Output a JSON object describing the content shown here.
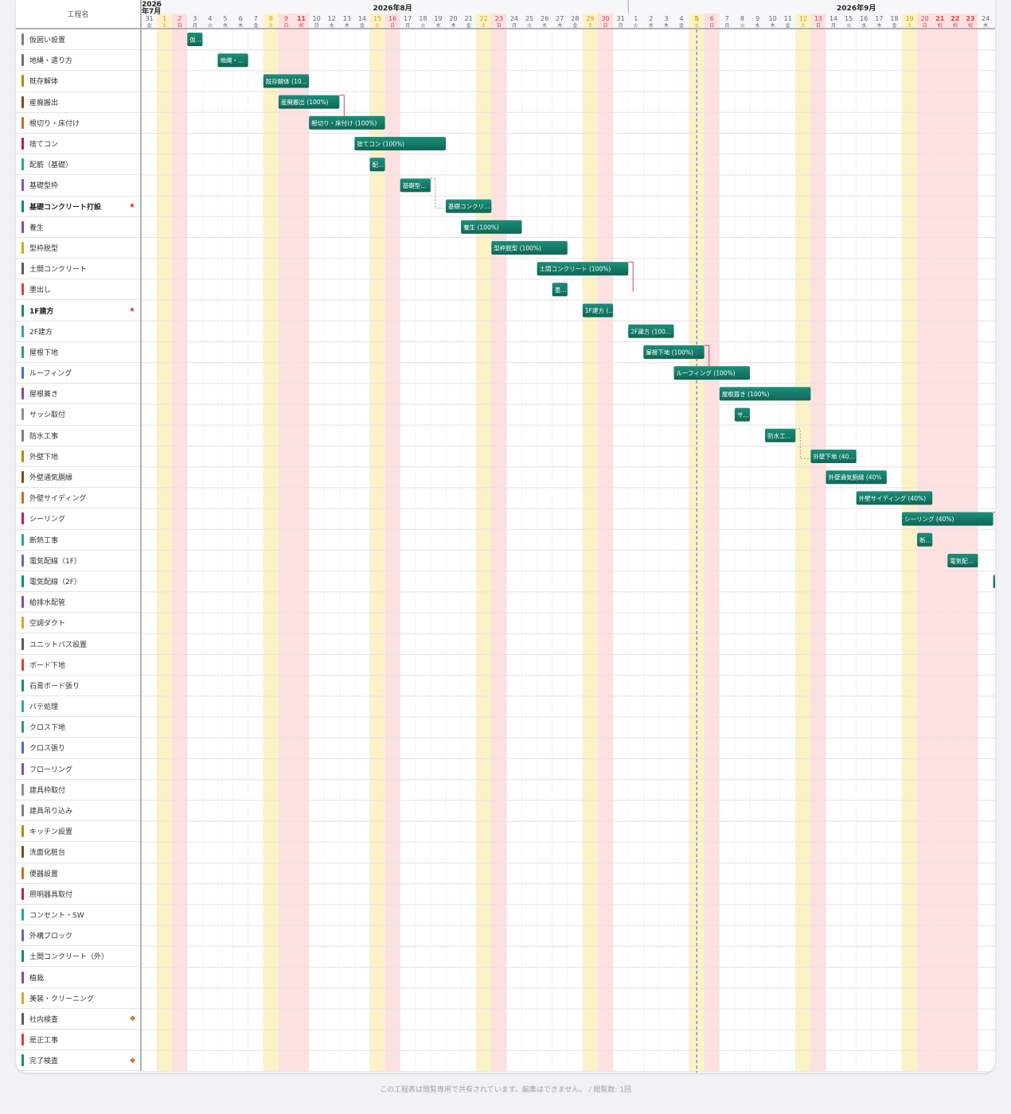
{
  "header": {
    "name_col": "工程名",
    "months": [
      {
        "label": "2026年7月",
        "stacked": true
      },
      {
        "label": "2026年8月"
      },
      {
        "label": "2026年9月"
      }
    ],
    "today_index": 36
  },
  "colors": {
    "bar": "#126f5f",
    "bar_light": "#1b8f7a",
    "saturday_bg": "#fdf2c6",
    "holiday_bg": "#fde0e0",
    "today_line": "#3f62d8",
    "dependency": "#d94452"
  },
  "days": [
    {
      "d": "31",
      "w": "金",
      "t": "n"
    },
    {
      "d": "1",
      "w": "土",
      "t": "s"
    },
    {
      "d": "2",
      "w": "日",
      "t": "h"
    },
    {
      "d": "3",
      "w": "月",
      "t": "n"
    },
    {
      "d": "4",
      "w": "火",
      "t": "n"
    },
    {
      "d": "5",
      "w": "水",
      "t": "n"
    },
    {
      "d": "6",
      "w": "木",
      "t": "n"
    },
    {
      "d": "7",
      "w": "金",
      "t": "n"
    },
    {
      "d": "8",
      "w": "土",
      "t": "s"
    },
    {
      "d": "9",
      "w": "日",
      "t": "h"
    },
    {
      "d": "11",
      "w": "祝",
      "t": "hb"
    },
    {
      "d": "10",
      "w": "月",
      "t": "n"
    },
    {
      "d": "12",
      "w": "水",
      "t": "n"
    },
    {
      "d": "13",
      "w": "木",
      "t": "n"
    },
    {
      "d": "14",
      "w": "金",
      "t": "n"
    },
    {
      "d": "15",
      "w": "土",
      "t": "s"
    },
    {
      "d": "16",
      "w": "日",
      "t": "h"
    },
    {
      "d": "17",
      "w": "月",
      "t": "n"
    },
    {
      "d": "18",
      "w": "火",
      "t": "n"
    },
    {
      "d": "19",
      "w": "水",
      "t": "n"
    },
    {
      "d": "20",
      "w": "木",
      "t": "n"
    },
    {
      "d": "21",
      "w": "金",
      "t": "n"
    },
    {
      "d": "22",
      "w": "土",
      "t": "s"
    },
    {
      "d": "23",
      "w": "日",
      "t": "h"
    },
    {
      "d": "24",
      "w": "月",
      "t": "n"
    },
    {
      "d": "25",
      "w": "火",
      "t": "n"
    },
    {
      "d": "26",
      "w": "水",
      "t": "n"
    },
    {
      "d": "27",
      "w": "木",
      "t": "n"
    },
    {
      "d": "28",
      "w": "金",
      "t": "n"
    },
    {
      "d": "29",
      "w": "土",
      "t": "s"
    },
    {
      "d": "30",
      "w": "日",
      "t": "h"
    },
    {
      "d": "31",
      "w": "月",
      "t": "n"
    },
    {
      "d": "1",
      "w": "火",
      "t": "n"
    },
    {
      "d": "2",
      "w": "水",
      "t": "n"
    },
    {
      "d": "3",
      "w": "木",
      "t": "n"
    },
    {
      "d": "4",
      "w": "金",
      "t": "n"
    },
    {
      "d": "5",
      "w": "土",
      "t": "s"
    },
    {
      "d": "6",
      "w": "日",
      "t": "h"
    },
    {
      "d": "7",
      "w": "月",
      "t": "n"
    },
    {
      "d": "8",
      "w": "火",
      "t": "n"
    },
    {
      "d": "9",
      "w": "水",
      "t": "n"
    },
    {
      "d": "10",
      "w": "木",
      "t": "n"
    },
    {
      "d": "11",
      "w": "金",
      "t": "n"
    },
    {
      "d": "12",
      "w": "土",
      "t": "s"
    },
    {
      "d": "13",
      "w": "日",
      "t": "h"
    },
    {
      "d": "14",
      "w": "月",
      "t": "n"
    },
    {
      "d": "15",
      "w": "火",
      "t": "n"
    },
    {
      "d": "16",
      "w": "水",
      "t": "n"
    },
    {
      "d": "17",
      "w": "木",
      "t": "n"
    },
    {
      "d": "18",
      "w": "金",
      "t": "n"
    },
    {
      "d": "19",
      "w": "土",
      "t": "s"
    },
    {
      "d": "20",
      "w": "日",
      "t": "h"
    },
    {
      "d": "21",
      "w": "祝",
      "t": "hb"
    },
    {
      "d": "22",
      "w": "祝",
      "t": "hb"
    },
    {
      "d": "23",
      "w": "祝",
      "t": "hb"
    },
    {
      "d": "24",
      "w": "木",
      "t": "n"
    }
  ],
  "tasks": [
    {
      "name": "仮囲い設置",
      "color": "#7a7f87",
      "bar": {
        "start": 3,
        "dur": 1,
        "label": "仮..."
      }
    },
    {
      "name": "地縄・遣り方",
      "color": "#6b6f76",
      "bar": {
        "start": 5,
        "dur": 2,
        "label": "地縄・..."
      }
    },
    {
      "name": "既存解体",
      "color": "#b8860b",
      "bar": {
        "start": 8,
        "dur": 3,
        "label": "既存解体 (10..."
      }
    },
    {
      "name": "産廃搬出",
      "color": "#8b4513",
      "bar": {
        "start": 9,
        "dur": 4,
        "label": "産廃搬出 (100%)"
      }
    },
    {
      "name": "根切り・床付け",
      "color": "#d2691e",
      "bar": {
        "start": 11,
        "dur": 5,
        "label": "根切り・床付け (100%)"
      }
    },
    {
      "name": "捨てコン",
      "color": "#c2185b",
      "bar": {
        "start": 14,
        "dur": 6,
        "label": "捨てコン (100%)"
      }
    },
    {
      "name": "配筋（基礎）",
      "color": "#26a69a",
      "bar": {
        "start": 15,
        "dur": 1,
        "label": "配..."
      }
    },
    {
      "name": "基礎型枠",
      "color": "#7e57c2",
      "bar": {
        "start": 17,
        "dur": 2,
        "label": "基礎型..."
      }
    },
    {
      "name": "基礎コンクリート打設",
      "color": "#00897b",
      "bold": true,
      "mark": "★",
      "mark_color": "#e53935",
      "bar": {
        "start": 20,
        "dur": 3,
        "label": "基礎コンクリ..."
      }
    },
    {
      "name": "養生",
      "color": "#8e44ad",
      "bar": {
        "start": 21,
        "dur": 4,
        "label": "養生 (100%)"
      }
    },
    {
      "name": "型枠脱型",
      "color": "#daa520",
      "bar": {
        "start": 23,
        "dur": 5,
        "label": "型枠脱型 (100%)"
      }
    },
    {
      "name": "土間コンクリート",
      "color": "#555b63",
      "bar": {
        "start": 26,
        "dur": 6,
        "label": "土間コンクリート (100%)"
      }
    },
    {
      "name": "墨出し",
      "color": "#e53935",
      "bar": {
        "start": 27,
        "dur": 1,
        "label": "墨..."
      }
    },
    {
      "name": "1F建方",
      "color": "#1b8a6b",
      "bold": true,
      "mark": "★",
      "mark_color": "#e53935",
      "bar": {
        "start": 29,
        "dur": 2,
        "label": "1F建方 (..."
      }
    },
    {
      "name": "2F建方",
      "color": "#2aa7b5",
      "bar": {
        "start": 32,
        "dur": 3,
        "label": "2F建方 (100..."
      }
    },
    {
      "name": "屋根下地",
      "color": "#2e9d6a",
      "bar": {
        "start": 33,
        "dur": 4,
        "label": "屋根下地 (100%)"
      }
    },
    {
      "name": "ルーフィング",
      "color": "#3b6fd8",
      "bar": {
        "start": 35,
        "dur": 5,
        "label": "ルーフィング (100%)"
      }
    },
    {
      "name": "屋根葺き",
      "color": "#8e44ad",
      "bar": {
        "start": 38,
        "dur": 6,
        "label": "屋根葺き (100%)"
      }
    },
    {
      "name": "サッシ取付",
      "color": "#8a8f98",
      "bar": {
        "start": 39,
        "dur": 1,
        "label": "サ..."
      }
    },
    {
      "name": "防水工事",
      "color": "#7a7f87",
      "bar": {
        "start": 41,
        "dur": 2,
        "label": "防水工..."
      }
    },
    {
      "name": "外壁下地",
      "color": "#b8860b",
      "bar": {
        "start": 44,
        "dur": 3,
        "label": "外壁下地 (40..."
      }
    },
    {
      "name": "外壁通気胴縁",
      "color": "#8b4513",
      "bar": {
        "start": 45,
        "dur": 4,
        "label": "外壁通気胴縁 (40%"
      }
    },
    {
      "name": "外壁サイディング",
      "color": "#d2691e",
      "bar": {
        "start": 47,
        "dur": 5,
        "label": "外壁サイディング (40%)"
      }
    },
    {
      "name": "シーリング",
      "color": "#c2185b",
      "bar": {
        "start": 50,
        "dur": 6,
        "label": "シーリング (40%)"
      }
    },
    {
      "name": "断熱工事",
      "color": "#26a69a",
      "bar": {
        "start": 51,
        "dur": 1,
        "label": "断..."
      }
    },
    {
      "name": "電気配線（1F）",
      "color": "#5c6bc0",
      "bar": {
        "start": 53,
        "dur": 2,
        "label": "電気配..."
      }
    },
    {
      "name": "電気配線（2F）",
      "color": "#00897b",
      "bar": {
        "start": 56,
        "dur": 1,
        "label": ""
      }
    },
    {
      "name": "給排水配管",
      "color": "#8e44ad",
      "bar": null
    },
    {
      "name": "空調ダクト",
      "color": "#daa520",
      "bar": null
    },
    {
      "name": "ユニットバス設置",
      "color": "#555b63",
      "bar": null
    },
    {
      "name": "ボード下地",
      "color": "#e53935",
      "bar": null
    },
    {
      "name": "石膏ボード張り",
      "color": "#1b8a6b",
      "bar": null
    },
    {
      "name": "パテ処理",
      "color": "#2aa7b5",
      "bar": null
    },
    {
      "name": "クロス下地",
      "color": "#2e9d6a",
      "bar": null
    },
    {
      "name": "クロス張り",
      "color": "#3b6fd8",
      "bar": null
    },
    {
      "name": "フローリング",
      "color": "#8e44ad",
      "bar": null
    },
    {
      "name": "建具枠取付",
      "color": "#8a8f98",
      "bar": null
    },
    {
      "name": "建具吊り込み",
      "color": "#7a7f87",
      "bar": null
    },
    {
      "name": "キッチン設置",
      "color": "#b8860b",
      "bar": null
    },
    {
      "name": "洗面化粧台",
      "color": "#8b4513",
      "bar": null
    },
    {
      "name": "便器設置",
      "color": "#d2691e",
      "bar": null
    },
    {
      "name": "照明器具取付",
      "color": "#c2185b",
      "bar": null
    },
    {
      "name": "コンセント・SW",
      "color": "#26a69a",
      "bar": null
    },
    {
      "name": "外構ブロック",
      "color": "#5c6bc0",
      "bar": null
    },
    {
      "name": "土間コンクリート（外）",
      "color": "#00897b",
      "bar": null
    },
    {
      "name": "植栽",
      "color": "#8e44ad",
      "bar": null
    },
    {
      "name": "美装・クリーニング",
      "color": "#daa520",
      "bar": null
    },
    {
      "name": "社内検査",
      "color": "#555b63",
      "mark": "◆",
      "mark_color": "#e8701a",
      "bar": null
    },
    {
      "name": "是正工事",
      "color": "#e53935",
      "bar": null
    },
    {
      "name": "完了検査",
      "color": "#1b8a6b",
      "mark": "◆",
      "mark_color": "#e8701a",
      "bar": null
    }
  ],
  "dependencies": [
    {
      "from": 3,
      "to": 4,
      "style": "solid"
    },
    {
      "from": 7,
      "to": 8,
      "style": "dashed"
    },
    {
      "from": 11,
      "to": 12,
      "style": "solid"
    },
    {
      "from": 15,
      "to": 16,
      "style": "solid"
    },
    {
      "from": 19,
      "to": 20,
      "style": "dashed"
    },
    {
      "from": 23,
      "to": 24,
      "style": "solid"
    }
  ],
  "footer": "この工程表は閲覧専用で共有されています。編集はできません。 / 閲覧数: 1回"
}
